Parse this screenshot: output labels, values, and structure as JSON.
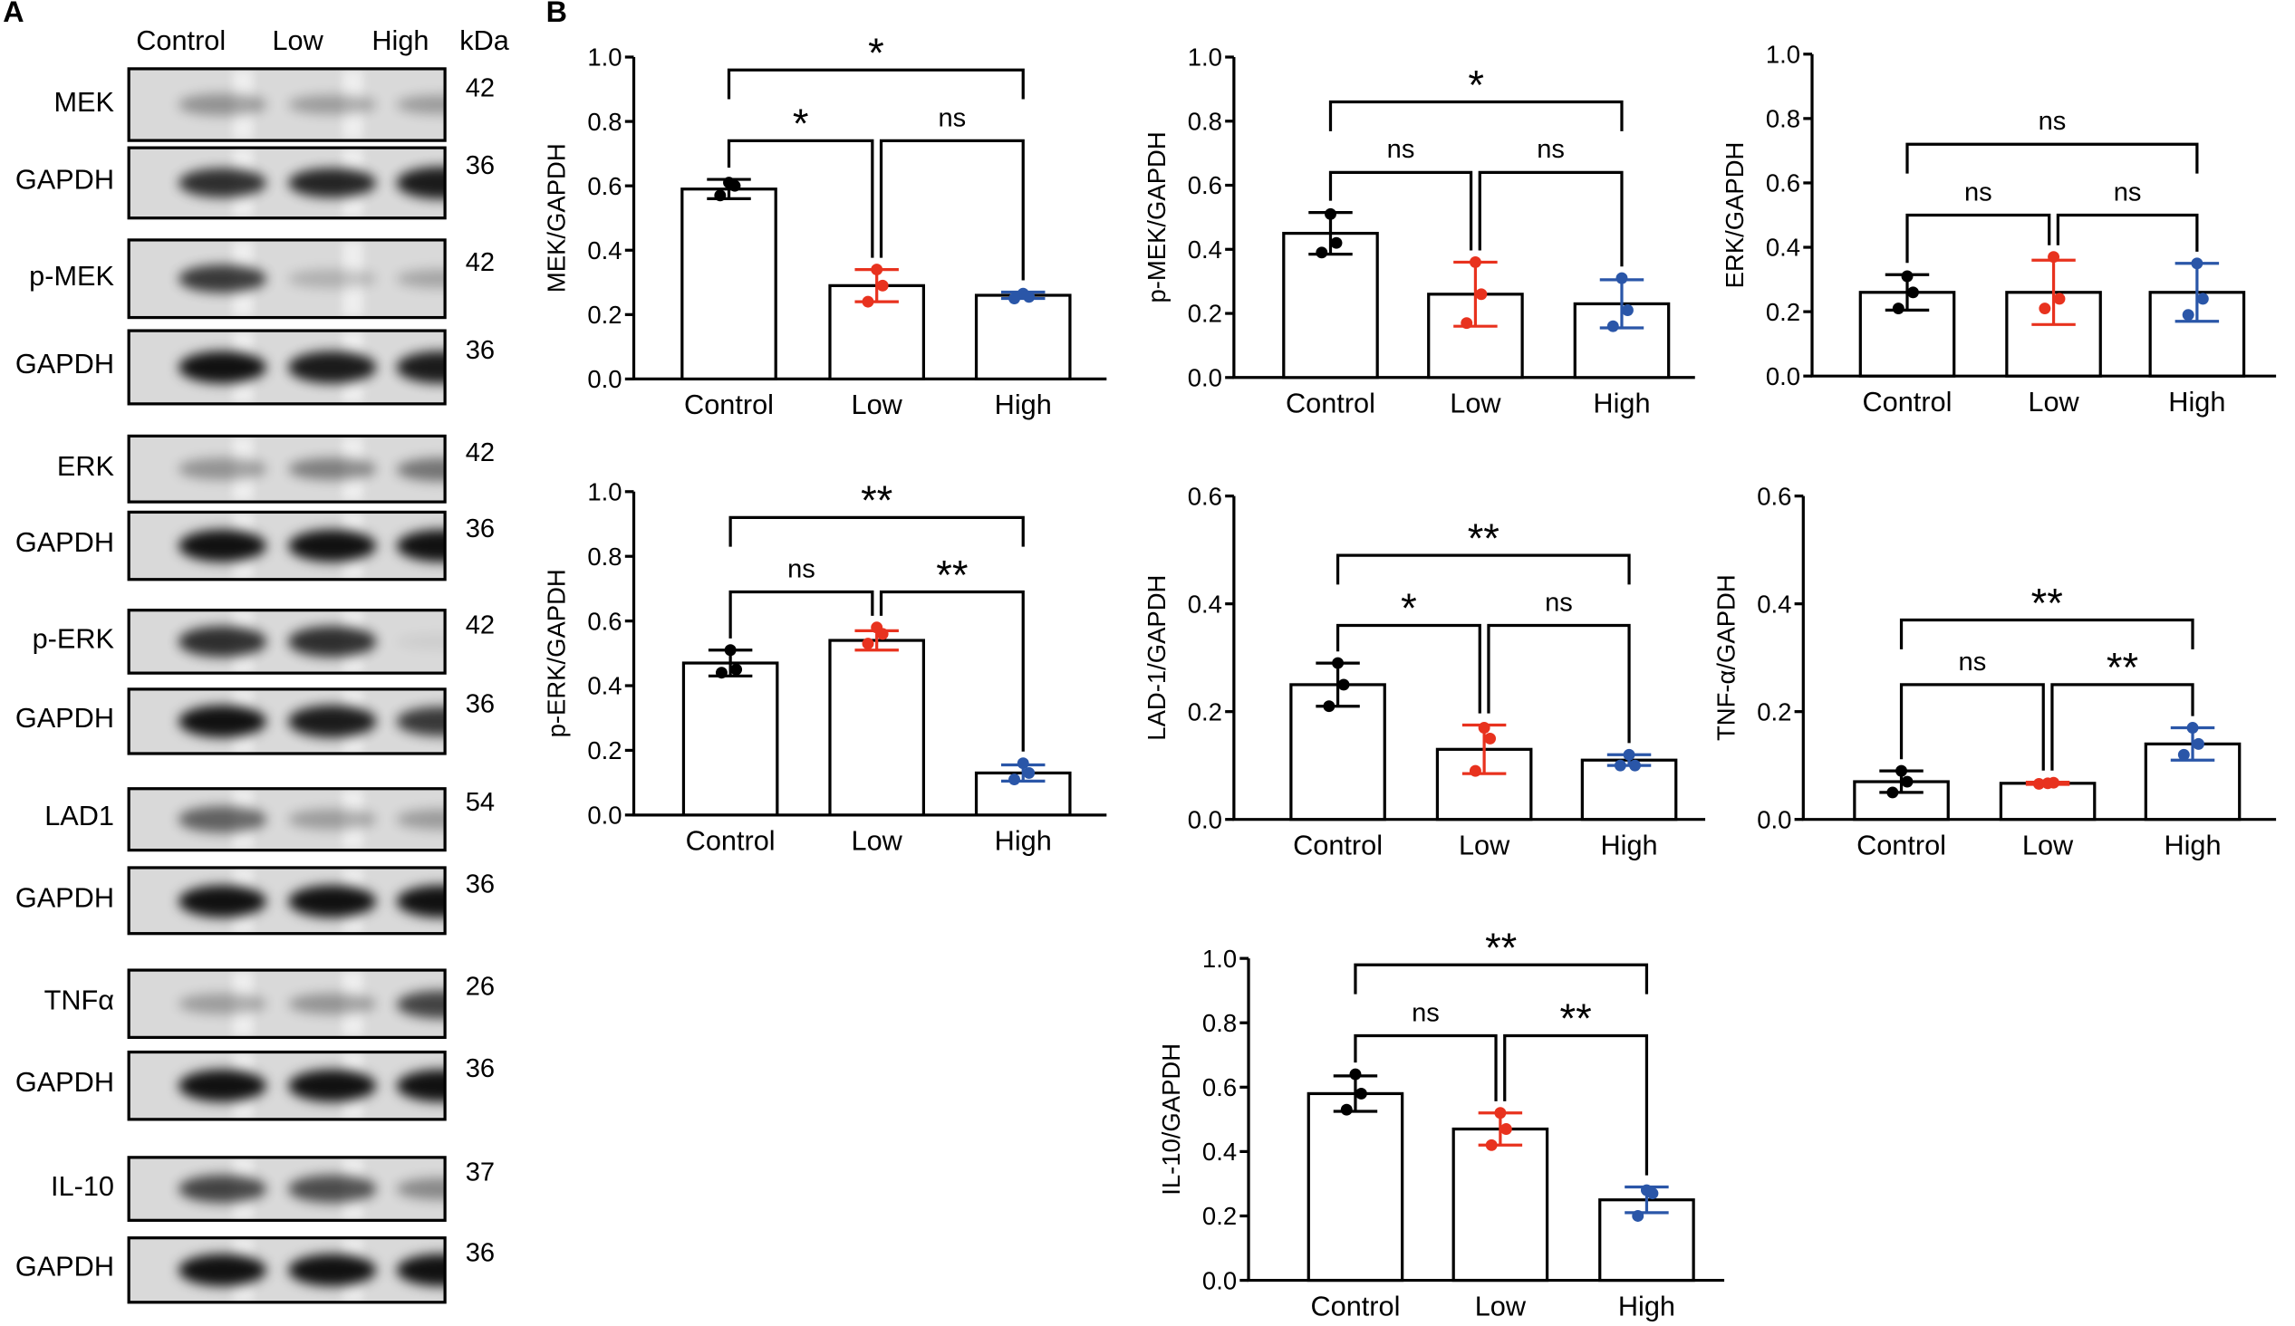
{
  "panel_a_label": "A",
  "panel_b_label": "B",
  "blot_header": {
    "lanes": [
      "Control",
      "Low",
      "High"
    ],
    "kda": "kDa"
  },
  "blots": [
    {
      "label": "MEK",
      "kda": "42",
      "intensity": [
        0.35,
        0.3,
        0.3
      ]
    },
    {
      "label": "GAPDH",
      "kda": "36",
      "intensity": [
        0.85,
        0.9,
        0.95
      ]
    },
    {
      "label": "p-MEK",
      "kda": "42",
      "intensity": [
        0.8,
        0.2,
        0.25
      ]
    },
    {
      "label": "GAPDH",
      "kda": "36",
      "intensity": [
        1,
        0.95,
        0.95
      ]
    },
    {
      "label": "ERK",
      "kda": "42",
      "intensity": [
        0.35,
        0.45,
        0.5
      ]
    },
    {
      "label": "GAPDH",
      "kda": "36",
      "intensity": [
        1,
        1,
        1
      ]
    },
    {
      "label": "p-ERK",
      "kda": "42",
      "intensity": [
        0.85,
        0.85,
        0.05
      ]
    },
    {
      "label": "GAPDH",
      "kda": "36",
      "intensity": [
        1,
        0.95,
        0.8
      ]
    },
    {
      "label": "LAD1",
      "kda": "54",
      "intensity": [
        0.6,
        0.3,
        0.3
      ]
    },
    {
      "label": "GAPDH",
      "kda": "36",
      "intensity": [
        1,
        1,
        1
      ]
    },
    {
      "label": "TNFα",
      "kda": "26",
      "intensity": [
        0.3,
        0.35,
        0.75
      ]
    },
    {
      "label": "GAPDH",
      "kda": "36",
      "intensity": [
        1,
        1,
        1
      ]
    },
    {
      "label": "IL-10",
      "kda": "37",
      "intensity": [
        0.75,
        0.7,
        0.4
      ]
    },
    {
      "label": "GAPDH",
      "kda": "36",
      "intensity": [
        1,
        1,
        1
      ]
    }
  ],
  "colors": {
    "Control": "#000000",
    "Low": "#e8321e",
    "High": "#2a56a8"
  },
  "chart_data": [
    {
      "type": "bar",
      "ylabel": "MEK/GAPDH",
      "ylim": [
        0,
        1.0
      ],
      "yticks": [
        "0.0",
        "0.2",
        "0.4",
        "0.6",
        "0.8",
        "1.0"
      ],
      "categories": [
        "Control",
        "Low",
        "High"
      ],
      "values": [
        0.59,
        0.29,
        0.26
      ],
      "sd": [
        0.03,
        0.05,
        0.01
      ],
      "points": [
        [
          0.61,
          0.6,
          0.57
        ],
        [
          0.34,
          0.29,
          0.24
        ],
        [
          0.265,
          0.255,
          0.25
        ]
      ],
      "brackets": [
        {
          "from": 0,
          "to": 2,
          "y": 0.96,
          "label": "*"
        },
        {
          "from": 0,
          "to": 1,
          "y": 0.74,
          "label": "*"
        },
        {
          "from": 1,
          "to": 2,
          "y": 0.74,
          "label": "ns"
        }
      ]
    },
    {
      "type": "bar",
      "ylabel": "p-MEK/GAPDH",
      "ylim": [
        0,
        1.0
      ],
      "yticks": [
        "0.0",
        "0.2",
        "0.4",
        "0.6",
        "0.8",
        "1.0"
      ],
      "categories": [
        "Control",
        "Low",
        "High"
      ],
      "values": [
        0.45,
        0.26,
        0.23
      ],
      "sd": [
        0.065,
        0.1,
        0.075
      ],
      "points": [
        [
          0.51,
          0.42,
          0.39
        ],
        [
          0.36,
          0.26,
          0.17
        ],
        [
          0.31,
          0.21,
          0.16
        ]
      ],
      "brackets": [
        {
          "from": 0,
          "to": 2,
          "y": 0.86,
          "label": "*"
        },
        {
          "from": 0,
          "to": 1,
          "y": 0.64,
          "label": "ns"
        },
        {
          "from": 1,
          "to": 2,
          "y": 0.64,
          "label": "ns"
        }
      ]
    },
    {
      "type": "bar",
      "ylabel": "ERK/GAPDH",
      "ylim": [
        0,
        1.0
      ],
      "yticks": [
        "0.0",
        "0.2",
        "0.4",
        "0.6",
        "0.8",
        "1.0"
      ],
      "categories": [
        "Control",
        "Low",
        "High"
      ],
      "values": [
        0.26,
        0.26,
        0.26
      ],
      "sd": [
        0.055,
        0.1,
        0.09
      ],
      "points": [
        [
          0.31,
          0.26,
          0.21
        ],
        [
          0.37,
          0.24,
          0.21
        ],
        [
          0.35,
          0.24,
          0.19
        ]
      ],
      "brackets": [
        {
          "from": 0,
          "to": 2,
          "y": 0.72,
          "label": "ns"
        },
        {
          "from": 0,
          "to": 1,
          "y": 0.5,
          "label": "ns"
        },
        {
          "from": 1,
          "to": 2,
          "y": 0.5,
          "label": "ns"
        }
      ]
    },
    {
      "type": "bar",
      "ylabel": "p-ERK/GAPDH",
      "ylim": [
        0,
        1.0
      ],
      "yticks": [
        "0.0",
        "0.2",
        "0.4",
        "0.6",
        "0.8",
        "1.0"
      ],
      "categories": [
        "Control",
        "Low",
        "High"
      ],
      "values": [
        0.47,
        0.54,
        0.13
      ],
      "sd": [
        0.04,
        0.03,
        0.025
      ],
      "points": [
        [
          0.51,
          0.45,
          0.44
        ],
        [
          0.58,
          0.56,
          0.53
        ],
        [
          0.16,
          0.13,
          0.11
        ]
      ],
      "brackets": [
        {
          "from": 0,
          "to": 2,
          "y": 0.92,
          "label": "**"
        },
        {
          "from": 0,
          "to": 1,
          "y": 0.69,
          "label": "ns"
        },
        {
          "from": 1,
          "to": 2,
          "y": 0.69,
          "label": "**"
        }
      ]
    },
    {
      "type": "bar",
      "ylabel": "LAD-1/GAPDH",
      "ylim": [
        0,
        0.6
      ],
      "yticks": [
        "0.0",
        "0.2",
        "0.4",
        "0.6"
      ],
      "categories": [
        "Control",
        "Low",
        "High"
      ],
      "values": [
        0.25,
        0.13,
        0.11
      ],
      "sd": [
        0.04,
        0.045,
        0.01
      ],
      "points": [
        [
          0.29,
          0.25,
          0.21
        ],
        [
          0.17,
          0.15,
          0.09
        ],
        [
          0.12,
          0.1,
          0.1
        ]
      ],
      "brackets": [
        {
          "from": 0,
          "to": 2,
          "y": 0.49,
          "label": "**"
        },
        {
          "from": 0,
          "to": 1,
          "y": 0.36,
          "label": "*"
        },
        {
          "from": 1,
          "to": 2,
          "y": 0.36,
          "label": "ns"
        }
      ]
    },
    {
      "type": "bar",
      "ylabel": "TNF-α/GAPDH",
      "ylim": [
        0,
        0.6
      ],
      "yticks": [
        "0.0",
        "0.2",
        "0.4",
        "0.6"
      ],
      "categories": [
        "Control",
        "Low",
        "High"
      ],
      "values": [
        0.07,
        0.067,
        0.14
      ],
      "sd": [
        0.02,
        0.002,
        0.03
      ],
      "points": [
        [
          0.09,
          0.07,
          0.05
        ],
        [
          0.067,
          0.068,
          0.066
        ],
        [
          0.17,
          0.14,
          0.12
        ]
      ],
      "brackets": [
        {
          "from": 0,
          "to": 2,
          "y": 0.37,
          "label": "**"
        },
        {
          "from": 0,
          "to": 1,
          "y": 0.25,
          "label": "ns"
        },
        {
          "from": 1,
          "to": 2,
          "y": 0.25,
          "label": "**"
        }
      ]
    },
    {
      "type": "bar",
      "ylabel": "IL-10/GAPDH",
      "ylim": [
        0,
        1.0
      ],
      "yticks": [
        "0.0",
        "0.2",
        "0.4",
        "0.6",
        "0.8",
        "1.0"
      ],
      "categories": [
        "Control",
        "Low",
        "High"
      ],
      "values": [
        0.58,
        0.47,
        0.25
      ],
      "sd": [
        0.055,
        0.05,
        0.04
      ],
      "points": [
        [
          0.64,
          0.58,
          0.53
        ],
        [
          0.52,
          0.47,
          0.42
        ],
        [
          0.28,
          0.27,
          0.2
        ]
      ],
      "brackets": [
        {
          "from": 0,
          "to": 2,
          "y": 0.98,
          "label": "**"
        },
        {
          "from": 0,
          "to": 1,
          "y": 0.76,
          "label": "ns"
        },
        {
          "from": 1,
          "to": 2,
          "y": 0.76,
          "label": "**"
        }
      ]
    }
  ]
}
